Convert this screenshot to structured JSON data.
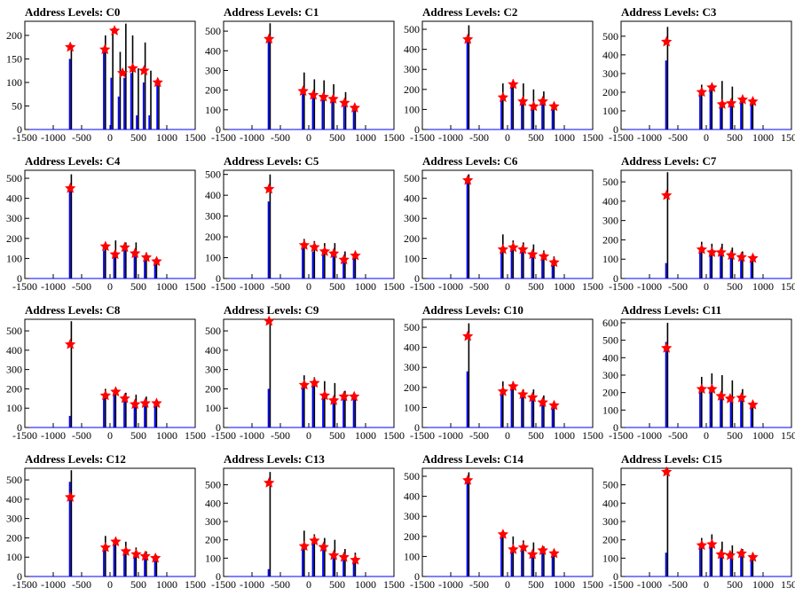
{
  "colors": {
    "hist_outline": "#000000",
    "hist_fill": "#0000ff",
    "peak_marker": "#ff0000",
    "frame": "#000000"
  },
  "marker_icon": "star-marker",
  "chart_data": [
    {
      "type": "histogram",
      "title": "Address Levels: C0",
      "xlim": [
        -1500,
        1500
      ],
      "ylim": [
        0,
        230
      ],
      "xticks": [
        -1500,
        -1000,
        -500,
        0,
        500,
        1000,
        1500
      ],
      "yticks": [
        0,
        50,
        100,
        150,
        200
      ],
      "bars_x": [
        -700,
        -100,
        30,
        160,
        260,
        380,
        480,
        600,
        700,
        840
      ],
      "bars_black": [
        180,
        200,
        215,
        165,
        225,
        200,
        130,
        185,
        125,
        100
      ],
      "bars_blue": [
        150,
        170,
        110,
        70,
        110,
        120,
        30,
        100,
        30,
        100
      ],
      "peaks": {
        "x": [
          -700,
          -90,
          80,
          220,
          400,
          600,
          840
        ],
        "y": [
          175,
          170,
          210,
          120,
          130,
          125,
          100
        ]
      }
    },
    {
      "type": "histogram",
      "title": "Address Levels: C1",
      "xlim": [
        -1500,
        1500
      ],
      "ylim": [
        0,
        550
      ],
      "xticks": [
        -1500,
        -1000,
        -500,
        0,
        500,
        1000,
        1500
      ],
      "yticks": [
        0,
        100,
        200,
        300,
        400,
        500
      ],
      "bars_x": [
        -700,
        -100,
        80,
        250,
        420,
        630,
        800
      ],
      "bars_black": [
        540,
        290,
        255,
        250,
        230,
        190,
        120
      ],
      "bars_blue": [
        470,
        200,
        170,
        160,
        150,
        120,
        110
      ],
      "peaks": {
        "x": [
          -700,
          -100,
          80,
          260,
          430,
          630,
          810
        ],
        "y": [
          460,
          195,
          175,
          165,
          155,
          135,
          110
        ]
      }
    },
    {
      "type": "histogram",
      "title": "Address Levels: C2",
      "xlim": [
        -1500,
        1500
      ],
      "ylim": [
        0,
        540
      ],
      "xticks": [
        -1500,
        -1000,
        -500,
        0,
        500,
        1000,
        1500
      ],
      "yticks": [
        0,
        100,
        200,
        300,
        400,
        500
      ],
      "bars_x": [
        -700,
        -100,
        80,
        260,
        440,
        620,
        800
      ],
      "bars_black": [
        520,
        230,
        250,
        230,
        200,
        190,
        130
      ],
      "bars_blue": [
        460,
        150,
        210,
        140,
        110,
        140,
        110
      ],
      "peaks": {
        "x": [
          -700,
          -80,
          100,
          270,
          460,
          620,
          820
        ],
        "y": [
          450,
          160,
          225,
          140,
          115,
          140,
          115
        ]
      }
    },
    {
      "type": "histogram",
      "title": "Address Levels: C3",
      "xlim": [
        -1500,
        1500
      ],
      "ylim": [
        0,
        580
      ],
      "xticks": [
        -1500,
        -1000,
        -500,
        0,
        500,
        1000,
        1500
      ],
      "yticks": [
        0,
        100,
        200,
        300,
        400,
        500
      ],
      "bars_x": [
        -700,
        -100,
        80,
        260,
        440,
        620,
        800
      ],
      "bars_black": [
        550,
        240,
        240,
        260,
        230,
        180,
        170
      ],
      "bars_blue": [
        370,
        200,
        220,
        130,
        130,
        160,
        150
      ],
      "peaks": {
        "x": [
          -700,
          -80,
          100,
          280,
          440,
          640,
          820
        ],
        "y": [
          470,
          200,
          225,
          135,
          140,
          160,
          150
        ]
      }
    },
    {
      "type": "histogram",
      "title": "Address Levels: C4",
      "xlim": [
        -1500,
        1500
      ],
      "ylim": [
        0,
        540
      ],
      "xticks": [
        -1500,
        -1000,
        -500,
        0,
        500,
        1000,
        1500
      ],
      "yticks": [
        0,
        100,
        200,
        300,
        400,
        500
      ],
      "bars_x": [
        -700,
        -100,
        80,
        260,
        440,
        620,
        800
      ],
      "bars_black": [
        520,
        170,
        190,
        180,
        180,
        130,
        100
      ],
      "bars_blue": [
        450,
        140,
        120,
        150,
        110,
        100,
        80
      ],
      "peaks": {
        "x": [
          -700,
          -80,
          90,
          260,
          440,
          640,
          820
        ],
        "y": [
          450,
          160,
          120,
          155,
          125,
          105,
          85
        ]
      }
    },
    {
      "type": "histogram",
      "title": "Address Levels: C5",
      "xlim": [
        -1500,
        1500
      ],
      "ylim": [
        0,
        520
      ],
      "xticks": [
        -1500,
        -1000,
        -500,
        0,
        500,
        1000,
        1500
      ],
      "yticks": [
        0,
        100,
        200,
        300,
        400,
        500
      ],
      "bars_x": [
        -700,
        -100,
        80,
        260,
        440,
        620,
        800
      ],
      "bars_black": [
        500,
        190,
        180,
        170,
        170,
        130,
        120
      ],
      "bars_blue": [
        370,
        150,
        130,
        130,
        110,
        80,
        100
      ],
      "peaks": {
        "x": [
          -700,
          -80,
          100,
          280,
          440,
          620,
          820
        ],
        "y": [
          430,
          160,
          150,
          130,
          120,
          90,
          110
        ]
      }
    },
    {
      "type": "histogram",
      "title": "Address Levels: C6",
      "xlim": [
        -1500,
        1500
      ],
      "ylim": [
        0,
        540
      ],
      "xticks": [
        -1500,
        -1000,
        -500,
        0,
        500,
        1000,
        1500
      ],
      "yticks": [
        0,
        100,
        200,
        300,
        400,
        500
      ],
      "bars_x": [
        -700,
        -100,
        80,
        260,
        440,
        620,
        800
      ],
      "bars_black": [
        520,
        220,
        190,
        180,
        170,
        140,
        110
      ],
      "bars_blue": [
        490,
        150,
        150,
        150,
        120,
        100,
        80
      ],
      "peaks": {
        "x": [
          -700,
          -80,
          100,
          270,
          440,
          640,
          820
        ],
        "y": [
          490,
          145,
          155,
          145,
          120,
          110,
          80
        ]
      }
    },
    {
      "type": "histogram",
      "title": "Address Levels: C7",
      "xlim": [
        -1500,
        1500
      ],
      "ylim": [
        0,
        560
      ],
      "xticks": [
        -1500,
        -1000,
        -500,
        0,
        500,
        1000,
        1500
      ],
      "yticks": [
        0,
        100,
        200,
        300,
        400,
        500
      ],
      "bars_x": [
        -700,
        -100,
        80,
        260,
        440,
        620,
        800
      ],
      "bars_black": [
        550,
        190,
        180,
        180,
        160,
        140,
        120
      ],
      "bars_blue": [
        80,
        140,
        130,
        130,
        110,
        100,
        100
      ],
      "peaks": {
        "x": [
          -700,
          -80,
          100,
          260,
          440,
          620,
          820
        ],
        "y": [
          430,
          150,
          135,
          135,
          120,
          110,
          105
        ]
      }
    },
    {
      "type": "histogram",
      "title": "Address Levels: C8",
      "xlim": [
        -1500,
        1500
      ],
      "ylim": [
        0,
        560
      ],
      "xticks": [
        -1500,
        -1000,
        -500,
        0,
        500,
        1000,
        1500
      ],
      "yticks": [
        0,
        100,
        200,
        300,
        400,
        500
      ],
      "bars_x": [
        -700,
        -100,
        80,
        260,
        440,
        620,
        800
      ],
      "bars_black": [
        550,
        200,
        200,
        180,
        170,
        160,
        130
      ],
      "bars_blue": [
        60,
        160,
        170,
        150,
        120,
        120,
        120
      ],
      "peaks": {
        "x": [
          -700,
          -80,
          100,
          260,
          440,
          620,
          820
        ],
        "y": [
          430,
          165,
          185,
          150,
          120,
          125,
          125
        ]
      }
    },
    {
      "type": "histogram",
      "title": "Address Levels: C9",
      "xlim": [
        -1500,
        1500
      ],
      "ylim": [
        0,
        560
      ],
      "xticks": [
        -1500,
        -1000,
        -500,
        0,
        500,
        1000,
        1500
      ],
      "yticks": [
        0,
        100,
        200,
        300,
        400,
        500
      ],
      "bars_x": [
        -700,
        -100,
        80,
        260,
        440,
        620,
        800
      ],
      "bars_black": [
        560,
        270,
        260,
        240,
        230,
        190,
        170
      ],
      "bars_blue": [
        200,
        210,
        220,
        150,
        140,
        150,
        150
      ],
      "peaks": {
        "x": [
          -700,
          -80,
          100,
          280,
          440,
          620,
          800
        ],
        "y": [
          550,
          220,
          230,
          165,
          140,
          160,
          160
        ]
      }
    },
    {
      "type": "histogram",
      "title": "Address Levels: C10",
      "xlim": [
        -1500,
        1500
      ],
      "ylim": [
        0,
        540
      ],
      "xticks": [
        -1500,
        -1000,
        -500,
        0,
        500,
        1000,
        1500
      ],
      "yticks": [
        0,
        100,
        200,
        300,
        400,
        500
      ],
      "bars_x": [
        -700,
        -100,
        80,
        260,
        440,
        620,
        800
      ],
      "bars_black": [
        520,
        230,
        230,
        190,
        190,
        160,
        130
      ],
      "bars_blue": [
        280,
        180,
        200,
        160,
        140,
        120,
        100
      ],
      "peaks": {
        "x": [
          -700,
          -80,
          100,
          270,
          440,
          620,
          820
        ],
        "y": [
          455,
          180,
          205,
          165,
          150,
          125,
          110
        ]
      }
    },
    {
      "type": "histogram",
      "title": "Address Levels: C11",
      "xlim": [
        -1500,
        1500
      ],
      "ylim": [
        0,
        620
      ],
      "xticks": [
        -1500,
        -1000,
        -500,
        0,
        500,
        1000,
        1500
      ],
      "yticks": [
        0,
        100,
        200,
        300,
        400,
        500,
        600
      ],
      "bars_x": [
        -700,
        -100,
        80,
        260,
        440,
        620,
        800
      ],
      "bars_black": [
        600,
        290,
        310,
        300,
        270,
        220,
        150
      ],
      "bars_blue": [
        490,
        220,
        220,
        180,
        170,
        160,
        130
      ],
      "peaks": {
        "x": [
          -700,
          -80,
          100,
          260,
          420,
          620,
          820
        ],
        "y": [
          455,
          220,
          220,
          180,
          165,
          170,
          130
        ]
      }
    },
    {
      "type": "histogram",
      "title": "Address Levels: C12",
      "xlim": [
        -1500,
        1500
      ],
      "ylim": [
        0,
        560
      ],
      "xticks": [
        -1500,
        -1000,
        -500,
        0,
        500,
        1000,
        1500
      ],
      "yticks": [
        0,
        100,
        200,
        300,
        400,
        500
      ],
      "bars_x": [
        -700,
        -100,
        80,
        260,
        440,
        620,
        800
      ],
      "bars_black": [
        550,
        210,
        200,
        180,
        150,
        130,
        110
      ],
      "bars_blue": [
        490,
        150,
        180,
        130,
        110,
        100,
        100
      ],
      "peaks": {
        "x": [
          -700,
          -80,
          100,
          280,
          460,
          620,
          800
        ],
        "y": [
          410,
          150,
          180,
          130,
          115,
          105,
          95
        ]
      }
    },
    {
      "type": "histogram",
      "title": "Address Levels: C13",
      "xlim": [
        -1500,
        1500
      ],
      "ylim": [
        0,
        590
      ],
      "xticks": [
        -1500,
        -1000,
        -500,
        0,
        500,
        1000,
        1500
      ],
      "yticks": [
        0,
        100,
        200,
        300,
        400,
        500
      ],
      "bars_x": [
        -700,
        -100,
        80,
        260,
        440,
        620,
        800
      ],
      "bars_black": [
        570,
        250,
        230,
        210,
        200,
        150,
        130
      ],
      "bars_blue": [
        40,
        160,
        190,
        150,
        110,
        100,
        90
      ],
      "peaks": {
        "x": [
          -700,
          -80,
          100,
          260,
          440,
          620,
          820
        ],
        "y": [
          510,
          165,
          195,
          160,
          115,
          105,
          90
        ]
      }
    },
    {
      "type": "histogram",
      "title": "Address Levels: C14",
      "xlim": [
        -1500,
        1500
      ],
      "ylim": [
        0,
        540
      ],
      "xticks": [
        -1500,
        -1000,
        -500,
        0,
        500,
        1000,
        1500
      ],
      "yticks": [
        0,
        100,
        200,
        300,
        400,
        500
      ],
      "bars_x": [
        -700,
        -100,
        80,
        260,
        440,
        620,
        800
      ],
      "bars_black": [
        520,
        220,
        200,
        180,
        170,
        150,
        130
      ],
      "bars_blue": [
        480,
        210,
        130,
        140,
        110,
        120,
        110
      ],
      "peaks": {
        "x": [
          -700,
          -80,
          100,
          280,
          440,
          620,
          820
        ],
        "y": [
          480,
          210,
          135,
          145,
          110,
          130,
          115
        ]
      }
    },
    {
      "type": "histogram",
      "title": "Address Levels: C15",
      "xlim": [
        -1500,
        1500
      ],
      "ylim": [
        0,
        590
      ],
      "xticks": [
        -1500,
        -1000,
        -500,
        0,
        500,
        1000,
        1500
      ],
      "yticks": [
        0,
        100,
        200,
        300,
        400,
        500
      ],
      "bars_x": [
        -700,
        -100,
        80,
        260,
        440,
        620,
        800
      ],
      "bars_black": [
        590,
        210,
        230,
        190,
        170,
        150,
        130
      ],
      "bars_blue": [
        130,
        160,
        170,
        120,
        110,
        120,
        100
      ],
      "peaks": {
        "x": [
          -700,
          -80,
          100,
          260,
          420,
          620,
          820
        ],
        "y": [
          570,
          170,
          175,
          120,
          115,
          125,
          105
        ]
      }
    }
  ]
}
